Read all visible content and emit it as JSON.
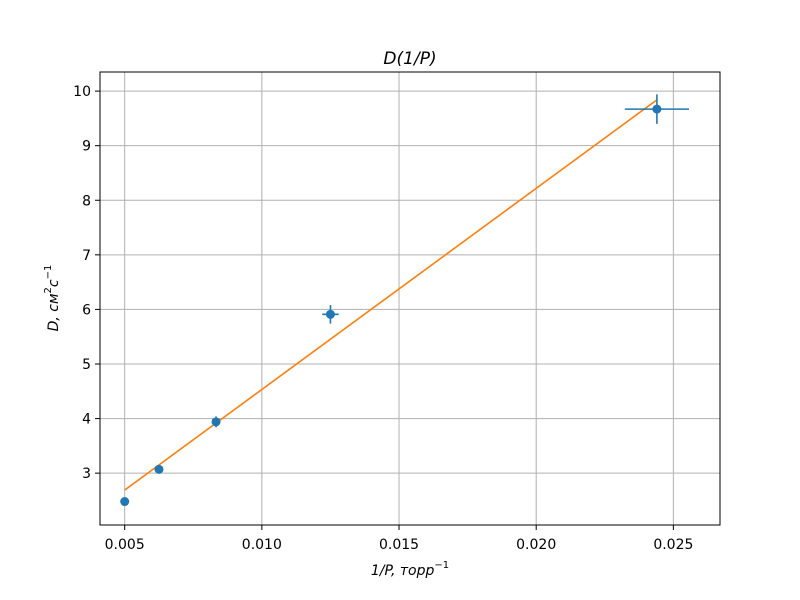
{
  "chart_data": {
    "type": "scatter",
    "title": "D(1/P)",
    "xlabel": "1/P, торр",
    "xlabel_sup": "−1",
    "ylabel": "D, см",
    "ylabel_sup_1": "2",
    "ylabel_mid": "с",
    "ylabel_sup_2": "−1",
    "xlim": [
      0.0041,
      0.0267
    ],
    "ylim": [
      2.05,
      10.35
    ],
    "xticks": [
      0.005,
      0.01,
      0.015,
      0.02,
      0.025
    ],
    "xtick_labels": [
      "0.005",
      "0.010",
      "0.015",
      "0.020",
      "0.025"
    ],
    "yticks": [
      3,
      4,
      5,
      6,
      7,
      8,
      9,
      10
    ],
    "ytick_labels": [
      "3",
      "4",
      "5",
      "6",
      "7",
      "8",
      "9",
      "10"
    ],
    "grid": true,
    "series": [
      {
        "kind": "errorbar",
        "color": "#1f77b4",
        "x": [
          0.005,
          0.00625,
          0.00833,
          0.0125,
          0.0244
        ],
        "y": [
          2.48,
          3.07,
          3.94,
          5.91,
          9.67
        ],
        "xerr": [
          3e-05,
          5e-05,
          0.0001,
          0.0003,
          0.00117
        ],
        "yerr": [
          0.03,
          0.05,
          0.1,
          0.17,
          0.27
        ]
      },
      {
        "kind": "line",
        "color": "#ff7f0e",
        "x": [
          0.005,
          0.0244
        ],
        "y": [
          2.69,
          9.84
        ]
      }
    ]
  }
}
